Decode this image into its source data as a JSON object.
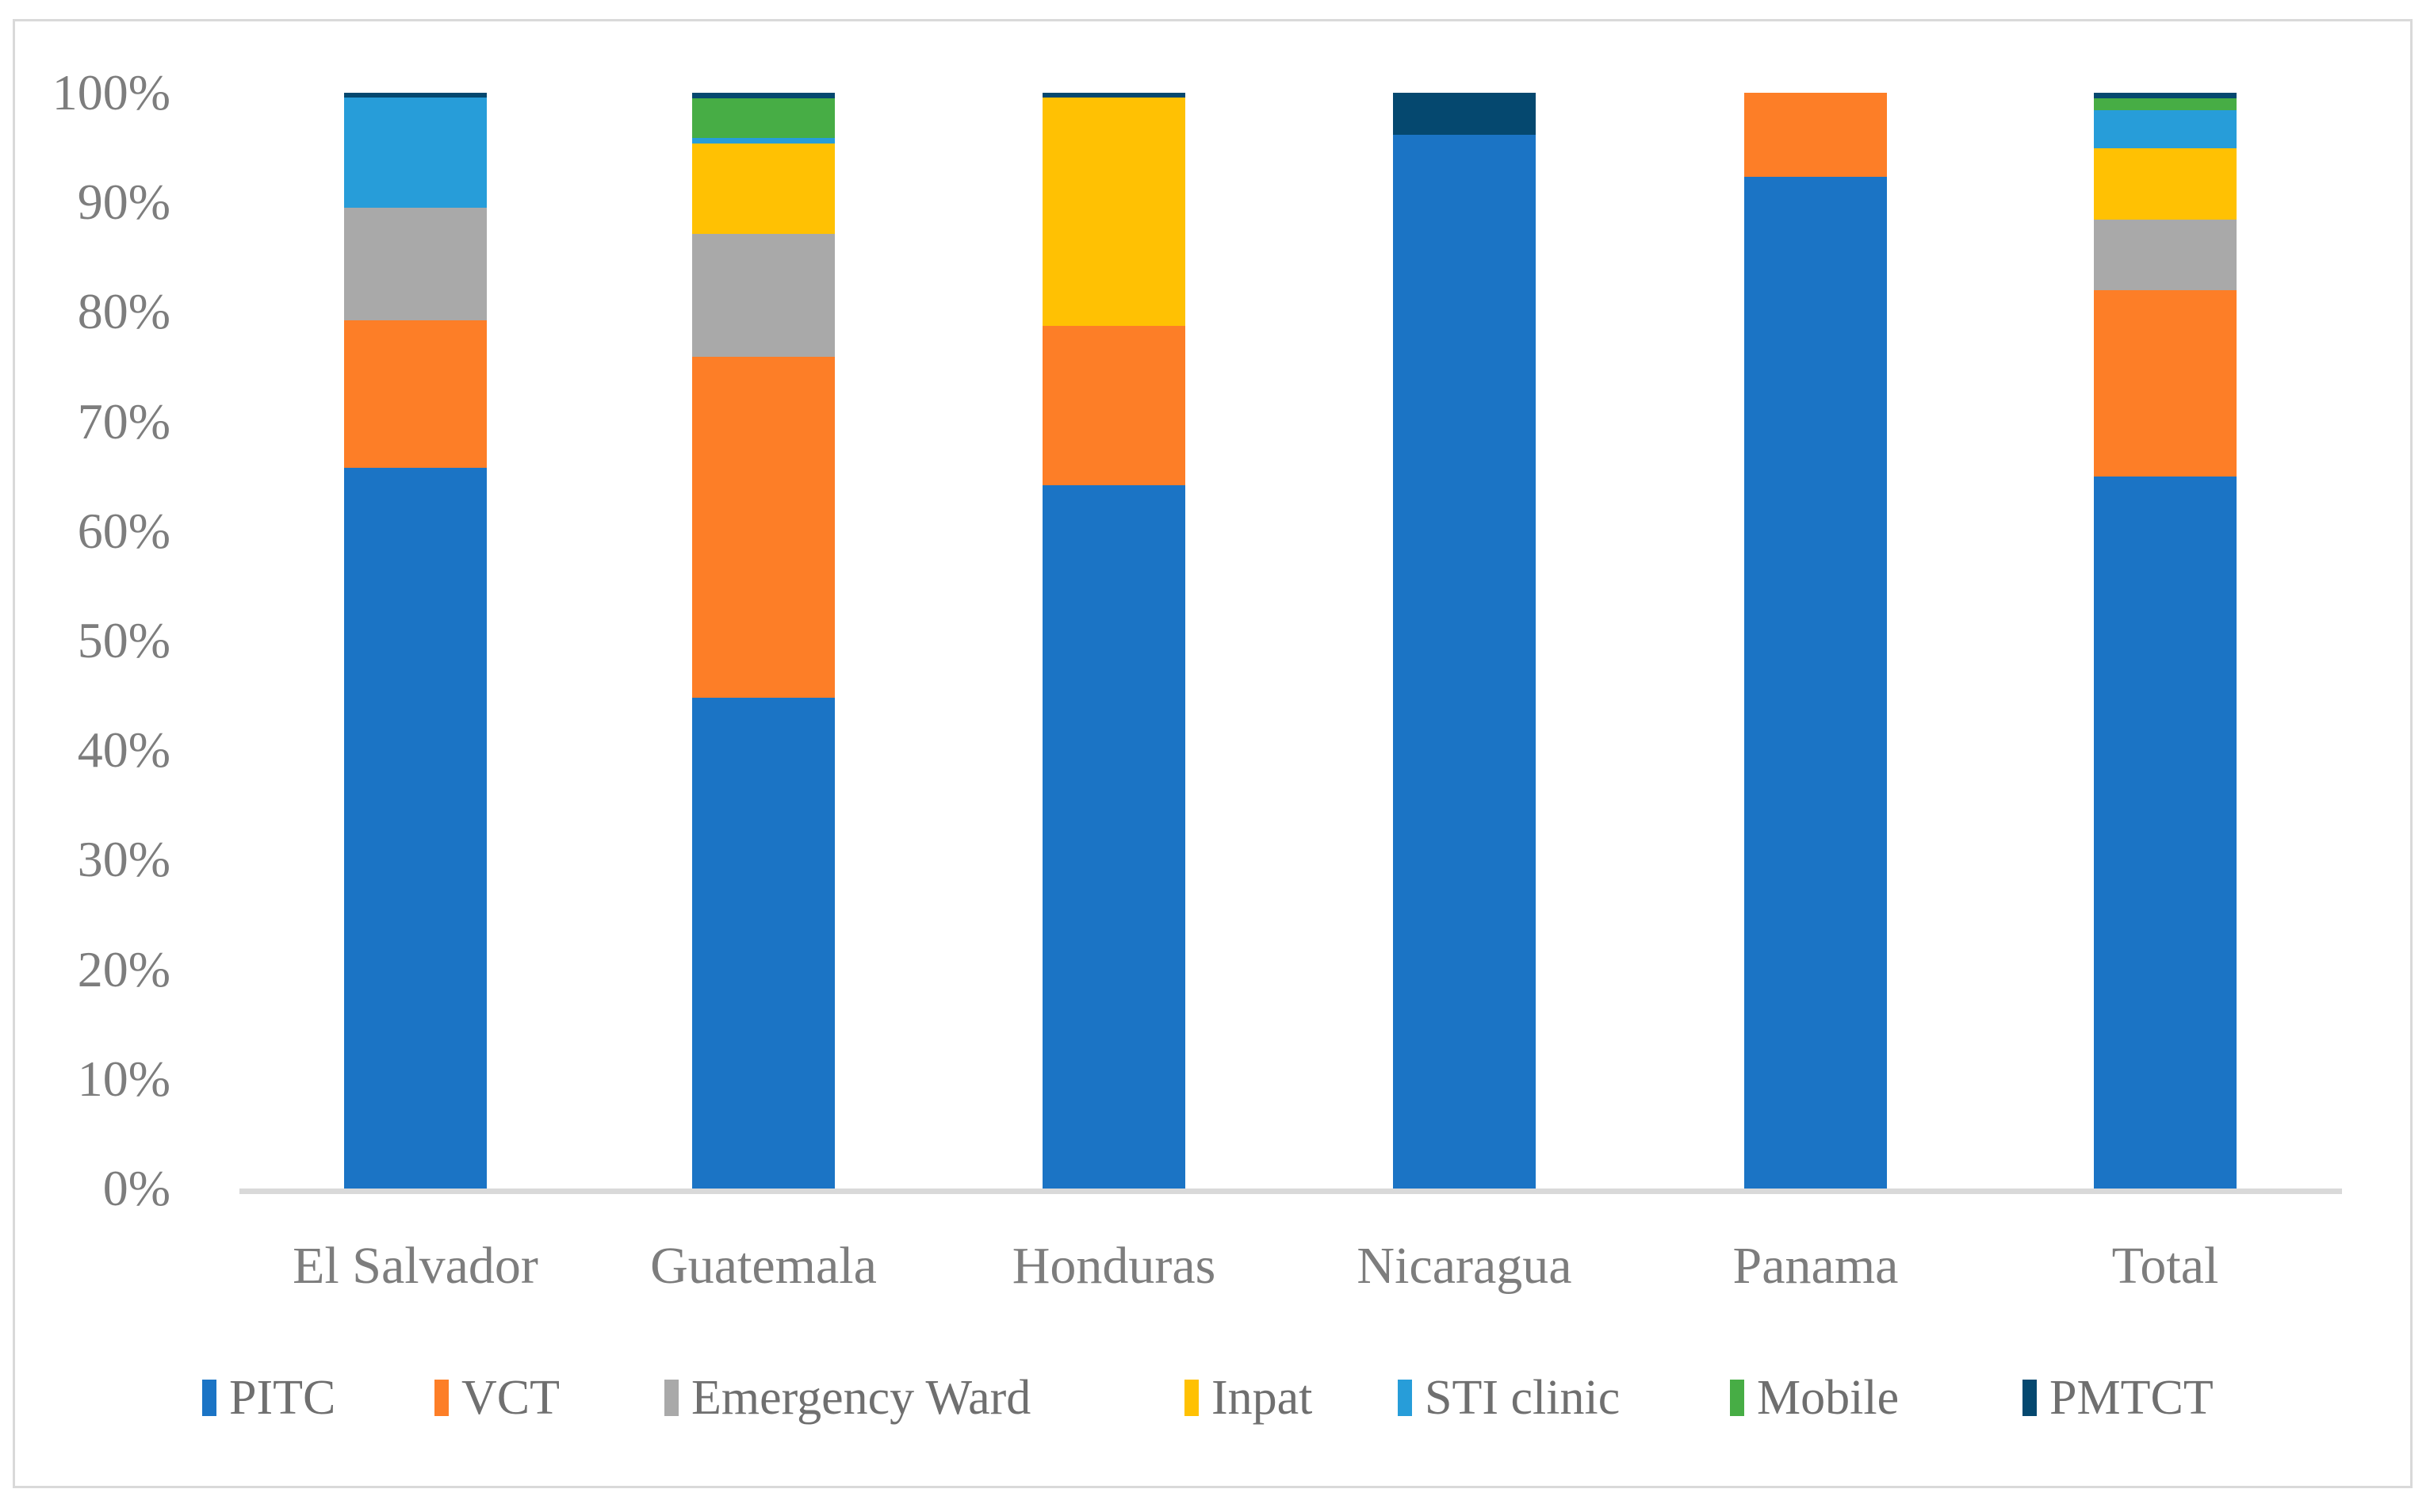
{
  "chart_data": {
    "type": "bar",
    "stacked": true,
    "percent_stacked": true,
    "title": "",
    "xlabel": "",
    "ylabel": "",
    "ylim": [
      0,
      100
    ],
    "grid": false,
    "legend_position": "bottom",
    "y_ticks": [
      "100%",
      "90%",
      "80%",
      "70%",
      "60%",
      "50%",
      "40%",
      "30%",
      "20%",
      "10%",
      "0%"
    ],
    "categories": [
      "El Salvador",
      "Guatemala",
      "Honduras",
      "Nicaragua",
      "Panama",
      "Total"
    ],
    "series": [
      {
        "name": "PITC",
        "color": "#1b74c5",
        "values": [
          65.8,
          44.8,
          64.2,
          96.2,
          92.3,
          65.0
        ]
      },
      {
        "name": "VCT",
        "color": "#fd7e27",
        "values": [
          13.4,
          31.1,
          14.5,
          0.0,
          7.7,
          17.0
        ]
      },
      {
        "name": "Emergency Ward",
        "color": "#a9a9a9",
        "values": [
          10.3,
          11.2,
          0.0,
          0.0,
          0.0,
          6.4
        ]
      },
      {
        "name": "Inpat",
        "color": "#ffc103",
        "values": [
          0.0,
          8.3,
          20.9,
          0.0,
          0.0,
          6.5
        ]
      },
      {
        "name": "STI clinic",
        "color": "#279dd9",
        "values": [
          10.1,
          0.5,
          0.0,
          0.0,
          0.0,
          3.5
        ]
      },
      {
        "name": "Mobile",
        "color": "#47ad45",
        "values": [
          0.0,
          3.6,
          0.0,
          0.0,
          0.0,
          1.1
        ]
      },
      {
        "name": "PMTCT",
        "color": "#05486f",
        "values": [
          0.4,
          0.5,
          0.4,
          3.8,
          0.0,
          0.5
        ]
      }
    ]
  },
  "axis": {
    "line_color": "#d9d9d9",
    "tick_label_color": "#7d7d7d",
    "category_label_color": "#7d7d7d"
  },
  "legend": {
    "text_color": "#6f6f6f"
  },
  "frame": {
    "border_color": "#d9d9d9"
  }
}
